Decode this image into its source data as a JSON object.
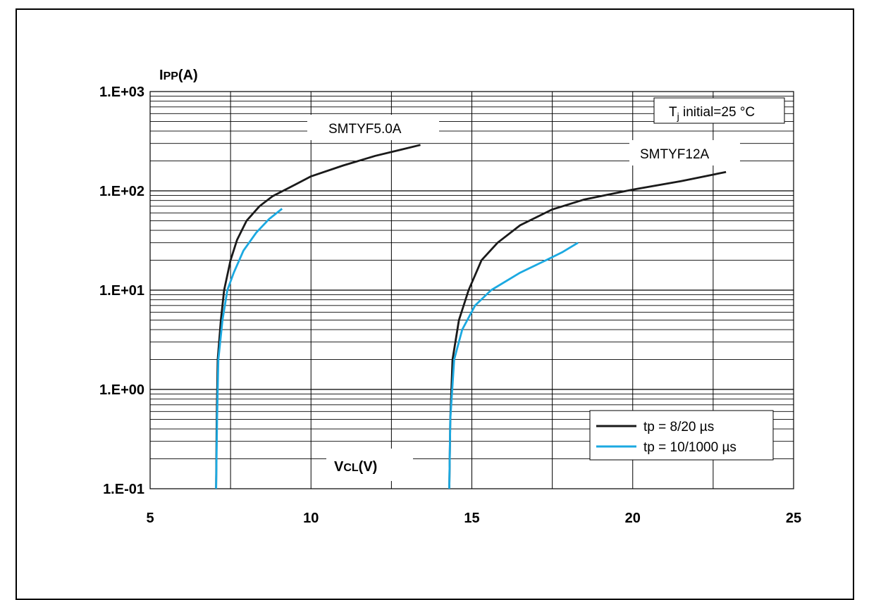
{
  "chart_data": {
    "type": "line",
    "title": "",
    "xlabel": "VCL(V)",
    "ylabel": "IPP(A)",
    "xlabel_parts": {
      "main": "V",
      "sub": "CL",
      "unit": "(V)"
    },
    "ylabel_parts": {
      "main": "I",
      "sub": "PP",
      "unit": "(A)"
    },
    "xlim": [
      5,
      25
    ],
    "ylim": [
      0.1,
      1000
    ],
    "yscale": "log",
    "grid": true,
    "x_ticks": [
      "5",
      "10",
      "15",
      "20",
      "25"
    ],
    "x_tick_values": [
      5,
      10,
      15,
      20,
      25
    ],
    "y_ticks": [
      "1.E-01",
      "1.E+00",
      "1.E+01",
      "1.E+02",
      "1.E+03"
    ],
    "y_tick_values": [
      0.1,
      1,
      10,
      100,
      1000
    ],
    "annotation": {
      "main": "T",
      "sub": "j",
      "rest": " initial=25 °C"
    },
    "legend": {
      "placement": "bottom-right",
      "entries": [
        {
          "label": "tp = 8/20 µs",
          "color": "#1a1a1a"
        },
        {
          "label": "tp = 10/1000 µs",
          "color": "#1ba9e1"
        }
      ]
    },
    "curve_labels": [
      {
        "text": "SMTYF5.0A",
        "near_series": "SMTYF5.0A 8/20"
      },
      {
        "text": "SMTYF12A",
        "near_series": "SMTYF12A 8/20"
      }
    ],
    "series": [
      {
        "id": "SMTYF5.0A 8/20",
        "color": "#1a1a1a",
        "points": [
          [
            7.05,
            0.1
          ],
          [
            7.07,
            0.5
          ],
          [
            7.1,
            2
          ],
          [
            7.2,
            5
          ],
          [
            7.3,
            10
          ],
          [
            7.5,
            20
          ],
          [
            7.7,
            32
          ],
          [
            8.0,
            50
          ],
          [
            8.4,
            70
          ],
          [
            8.8,
            88
          ],
          [
            9.5,
            115
          ],
          [
            10.0,
            140
          ],
          [
            11.0,
            180
          ],
          [
            12.0,
            225
          ],
          [
            12.8,
            260
          ],
          [
            13.4,
            290
          ]
        ]
      },
      {
        "id": "SMTYF5.0A 10/1000",
        "color": "#1ba9e1",
        "points": [
          [
            7.05,
            0.1
          ],
          [
            7.08,
            0.5
          ],
          [
            7.12,
            2
          ],
          [
            7.25,
            5
          ],
          [
            7.4,
            10
          ],
          [
            7.6,
            15
          ],
          [
            7.9,
            25
          ],
          [
            8.3,
            38
          ],
          [
            8.7,
            52
          ],
          [
            9.1,
            66
          ]
        ]
      },
      {
        "id": "SMTYF12A 8/20",
        "color": "#1a1a1a",
        "points": [
          [
            14.3,
            0.1
          ],
          [
            14.33,
            0.5
          ],
          [
            14.4,
            2
          ],
          [
            14.6,
            5
          ],
          [
            14.9,
            10
          ],
          [
            15.3,
            20
          ],
          [
            15.8,
            30
          ],
          [
            16.5,
            45
          ],
          [
            17.5,
            65
          ],
          [
            18.5,
            82
          ],
          [
            20.0,
            103
          ],
          [
            21.5,
            125
          ],
          [
            22.9,
            155
          ]
        ]
      },
      {
        "id": "SMTYF12A 10/1000",
        "color": "#1ba9e1",
        "points": [
          [
            14.3,
            0.1
          ],
          [
            14.33,
            0.5
          ],
          [
            14.45,
            2
          ],
          [
            14.7,
            4
          ],
          [
            15.1,
            7
          ],
          [
            15.6,
            10
          ],
          [
            16.5,
            15
          ],
          [
            17.3,
            20
          ],
          [
            17.8,
            24
          ],
          [
            18.3,
            30
          ]
        ]
      }
    ]
  }
}
